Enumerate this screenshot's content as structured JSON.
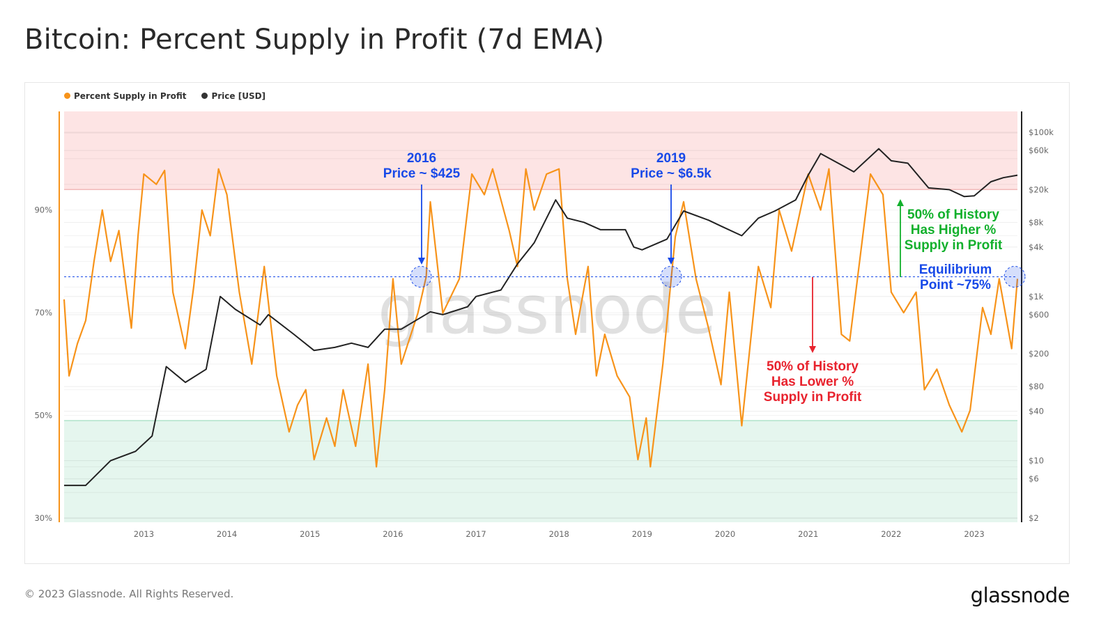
{
  "title": "Bitcoin: Percent Supply in Profit (7d EMA)",
  "footer": "© 2023 Glassnode. All Rights Reserved.",
  "logo": "glassnode",
  "watermark": "glassnode",
  "colors": {
    "supply": "#f7931a",
    "price": "#222222",
    "annotation_blue": "#1749e8",
    "annotation_red": "#e8232e",
    "annotation_green": "#12b02c",
    "red_zone": "#fde4e4",
    "green_zone": "#e5f6ee"
  },
  "legend": [
    {
      "label": "Percent Supply in Profit",
      "color": "#f7931a"
    },
    {
      "label": "Price [USD]",
      "color": "#333333"
    }
  ],
  "annotations": {
    "a2016": {
      "line1": "2016",
      "line2": "Price ~ $425"
    },
    "a2019": {
      "line1": "2019",
      "line2": "Price ~ $6.5k"
    },
    "lower": {
      "line1": "50% of History",
      "line2": "Has Lower %",
      "line3": "Supply in Profit"
    },
    "higher": {
      "line1": "50% of History",
      "line2": "Has Higher %",
      "line3": "Supply in Profit"
    },
    "equilibrium": {
      "line1": "Equilibrium",
      "line2": "Point ~75%"
    }
  },
  "chart_data": {
    "type": "line",
    "title": "Bitcoin: Percent Supply in Profit (7d EMA)",
    "xlim": [
      2012.04,
      2023.52
    ],
    "x_ticks": [
      "2013",
      "2014",
      "2015",
      "2016",
      "2017",
      "2018",
      "2019",
      "2020",
      "2021",
      "2022",
      "2023"
    ],
    "y_left": {
      "ticks": [
        "30%",
        "50%",
        "70%",
        "90%"
      ],
      "tick_values": [
        30,
        50,
        70,
        90
      ],
      "range": [
        29.2,
        109.2
      ]
    },
    "y_right": {
      "scale": "log",
      "ticks": [
        "$2",
        "$6",
        "$10",
        "$40",
        "$80",
        "$200",
        "$600",
        "$1k",
        "$4k",
        "$8k",
        "$20k",
        "$60k",
        "$100k"
      ],
      "tick_values": [
        2,
        6,
        10,
        40,
        80,
        200,
        600,
        1000,
        4000,
        8000,
        20000,
        60000,
        100000
      ]
    },
    "zones": {
      "red_above_pct": 94,
      "green_below_pct": 49
    },
    "equilibrium_pct": 77,
    "series": [
      {
        "name": "Percent Supply in Profit",
        "axis": "left",
        "points": [
          [
            2012.04,
            72.6
          ],
          [
            2012.1,
            57.7
          ],
          [
            2012.2,
            64
          ],
          [
            2012.3,
            68.5
          ],
          [
            2012.4,
            80
          ],
          [
            2012.5,
            90
          ],
          [
            2012.6,
            80
          ],
          [
            2012.7,
            86
          ],
          [
            2012.85,
            67
          ],
          [
            2012.93,
            85
          ],
          [
            2013.0,
            97
          ],
          [
            2013.15,
            95
          ],
          [
            2013.25,
            97.7
          ],
          [
            2013.35,
            74
          ],
          [
            2013.5,
            63
          ],
          [
            2013.6,
            75
          ],
          [
            2013.7,
            90
          ],
          [
            2013.8,
            85
          ],
          [
            2013.9,
            98
          ],
          [
            2014.0,
            93
          ],
          [
            2014.15,
            74
          ],
          [
            2014.3,
            60
          ],
          [
            2014.45,
            79
          ],
          [
            2014.6,
            57.7
          ],
          [
            2014.75,
            46.8
          ],
          [
            2014.85,
            52
          ],
          [
            2014.95,
            55
          ],
          [
            2015.05,
            41.4
          ],
          [
            2015.2,
            49.5
          ],
          [
            2015.3,
            44
          ],
          [
            2015.4,
            55
          ],
          [
            2015.55,
            44
          ],
          [
            2015.7,
            60
          ],
          [
            2015.8,
            40
          ],
          [
            2015.9,
            55
          ],
          [
            2016.0,
            76.6
          ],
          [
            2016.1,
            60
          ],
          [
            2016.3,
            69.9
          ],
          [
            2016.4,
            77
          ],
          [
            2016.45,
            91.6
          ],
          [
            2016.6,
            69.9
          ],
          [
            2016.8,
            76.6
          ],
          [
            2016.95,
            97
          ],
          [
            2017.1,
            93
          ],
          [
            2017.2,
            98
          ],
          [
            2017.4,
            86
          ],
          [
            2017.5,
            79
          ],
          [
            2017.6,
            98
          ],
          [
            2017.7,
            90
          ],
          [
            2017.85,
            97
          ],
          [
            2018.0,
            98
          ],
          [
            2018.1,
            76.6
          ],
          [
            2018.2,
            65.8
          ],
          [
            2018.35,
            79
          ],
          [
            2018.45,
            57.7
          ],
          [
            2018.55,
            65.8
          ],
          [
            2018.7,
            57.7
          ],
          [
            2018.85,
            53.6
          ],
          [
            2018.95,
            41.4
          ],
          [
            2019.05,
            49.5
          ],
          [
            2019.1,
            40
          ],
          [
            2019.25,
            60
          ],
          [
            2019.4,
            84.8
          ],
          [
            2019.5,
            91.6
          ],
          [
            2019.65,
            76.6
          ],
          [
            2019.8,
            67
          ],
          [
            2019.95,
            56
          ],
          [
            2020.05,
            74
          ],
          [
            2020.2,
            48
          ],
          [
            2020.4,
            79
          ],
          [
            2020.55,
            71
          ],
          [
            2020.65,
            90
          ],
          [
            2020.8,
            82
          ],
          [
            2021.0,
            97
          ],
          [
            2021.15,
            90
          ],
          [
            2021.25,
            98
          ],
          [
            2021.4,
            65.8
          ],
          [
            2021.5,
            64.5
          ],
          [
            2021.75,
            97
          ],
          [
            2021.9,
            93
          ],
          [
            2022.0,
            74
          ],
          [
            2022.15,
            70
          ],
          [
            2022.3,
            74
          ],
          [
            2022.4,
            55
          ],
          [
            2022.55,
            59
          ],
          [
            2022.7,
            52
          ],
          [
            2022.85,
            46.8
          ],
          [
            2022.95,
            51
          ],
          [
            2023.1,
            71
          ],
          [
            2023.2,
            65.8
          ],
          [
            2023.3,
            76.6
          ],
          [
            2023.45,
            63
          ],
          [
            2023.52,
            76.6
          ]
        ]
      },
      {
        "name": "Price [USD]",
        "axis": "right",
        "points": [
          [
            2012.04,
            5
          ],
          [
            2012.3,
            5
          ],
          [
            2012.6,
            10
          ],
          [
            2012.9,
            13
          ],
          [
            2013.1,
            20
          ],
          [
            2013.27,
            140
          ],
          [
            2013.5,
            90
          ],
          [
            2013.75,
            130
          ],
          [
            2013.92,
            1000
          ],
          [
            2014.1,
            700
          ],
          [
            2014.4,
            450
          ],
          [
            2014.5,
            600
          ],
          [
            2014.8,
            350
          ],
          [
            2015.05,
            220
          ],
          [
            2015.3,
            240
          ],
          [
            2015.5,
            270
          ],
          [
            2015.7,
            240
          ],
          [
            2015.9,
            400
          ],
          [
            2016.1,
            400
          ],
          [
            2016.45,
            650
          ],
          [
            2016.6,
            600
          ],
          [
            2016.9,
            750
          ],
          [
            2017.0,
            1000
          ],
          [
            2017.3,
            1200
          ],
          [
            2017.5,
            2500
          ],
          [
            2017.7,
            4500
          ],
          [
            2017.96,
            15000
          ],
          [
            2018.1,
            9000
          ],
          [
            2018.3,
            8000
          ],
          [
            2018.5,
            6500
          ],
          [
            2018.8,
            6500
          ],
          [
            2018.9,
            4000
          ],
          [
            2019.0,
            3700
          ],
          [
            2019.3,
            5000
          ],
          [
            2019.5,
            11000
          ],
          [
            2019.8,
            8500
          ],
          [
            2019.95,
            7200
          ],
          [
            2020.2,
            5500
          ],
          [
            2020.4,
            9000
          ],
          [
            2020.6,
            11000
          ],
          [
            2020.85,
            15000
          ],
          [
            2021.0,
            30000
          ],
          [
            2021.15,
            55000
          ],
          [
            2021.4,
            40000
          ],
          [
            2021.55,
            33000
          ],
          [
            2021.85,
            63000
          ],
          [
            2022.0,
            45000
          ],
          [
            2022.2,
            42000
          ],
          [
            2022.45,
            21000
          ],
          [
            2022.7,
            20000
          ],
          [
            2022.88,
            16500
          ],
          [
            2023.0,
            16800
          ],
          [
            2023.2,
            25000
          ],
          [
            2023.35,
            28000
          ],
          [
            2023.52,
            30000
          ]
        ]
      }
    ]
  }
}
